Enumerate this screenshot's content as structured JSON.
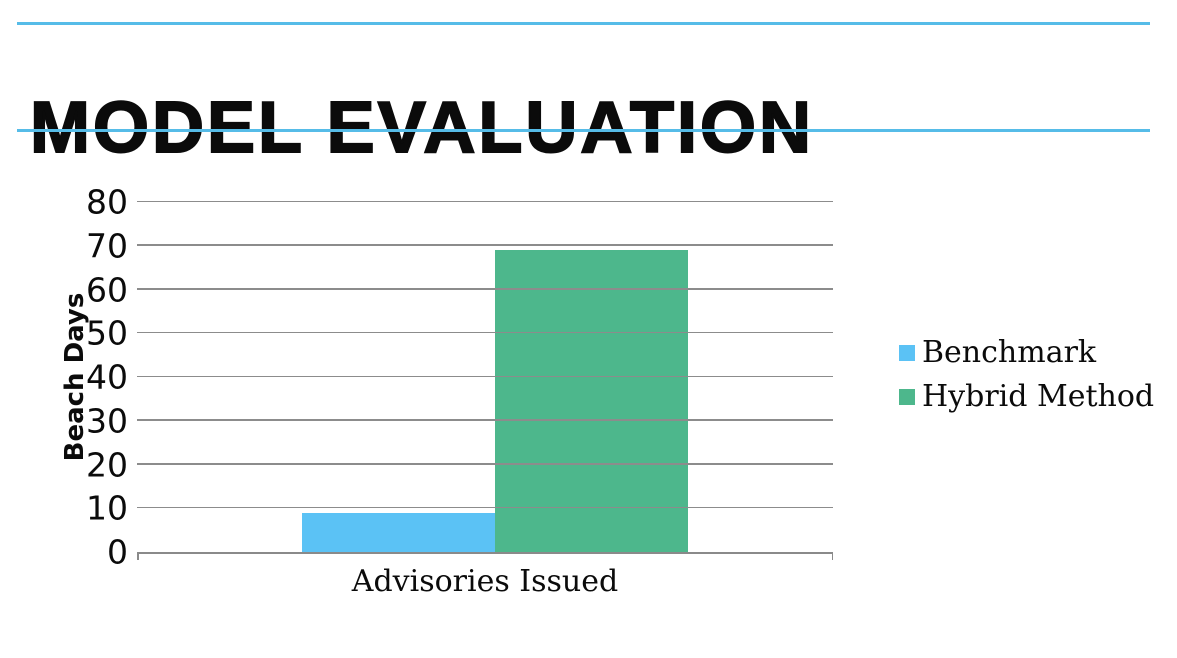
{
  "header": {
    "title": "MODEL EVALUATION"
  },
  "colors": {
    "accent_rule": "#56BCE8",
    "gridline": "#8C8C8C",
    "axis": "#8A8A8A",
    "benchmark_blue": "#5BC2F5",
    "hybrid_green": "#4DB78C"
  },
  "chart_data": {
    "type": "bar",
    "title": "",
    "categories": [
      "Advisories Issued"
    ],
    "series": [
      {
        "name": "Benchmark",
        "color": "#5BC2F5",
        "values": [
          9
        ]
      },
      {
        "name": "Hybrid Method",
        "color": "#4DB78C",
        "values": [
          69
        ]
      }
    ],
    "xlabel": "Advisories Issued",
    "ylabel": "Beach Days",
    "ylim": [
      0,
      80
    ],
    "yticks": [
      0,
      10,
      20,
      30,
      40,
      50,
      60,
      70,
      80
    ],
    "grid": true,
    "legend_position": "right"
  }
}
